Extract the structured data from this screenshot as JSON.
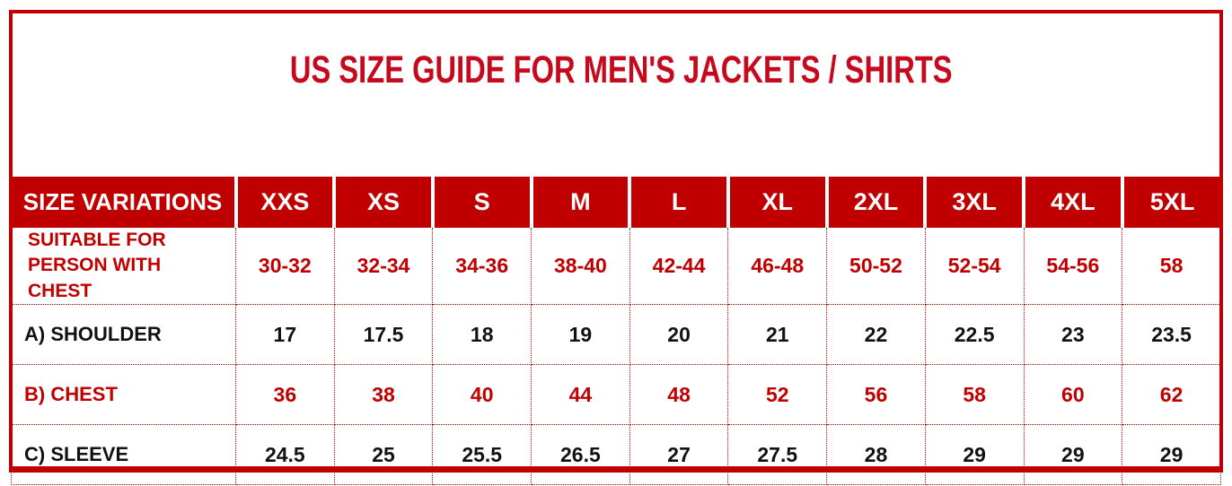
{
  "page": {
    "title": "US SIZE GUIDE FOR MEN'S JACKETS / SHIRTS"
  },
  "colors": {
    "table_red": "#C00000",
    "title_red": "#C7091D",
    "header_text": "#FFFFFF",
    "text_black": "#121212",
    "background": "#FFFFFF"
  },
  "chart_data": {
    "type": "table",
    "title": "US SIZE GUIDE FOR MEN'S JACKETS / SHIRTS",
    "header": [
      "SIZE VARIATIONS",
      "XXS",
      "XS",
      "S",
      "M",
      "L",
      "XL",
      "2XL",
      "3XL",
      "4XL",
      "5XL"
    ],
    "rows": [
      {
        "label": "SUITABLE FOR PERSON WITH CHEST",
        "text_color": "red",
        "values": [
          "30-32",
          "32-34",
          "34-36",
          "38-40",
          "42-44",
          "46-48",
          "50-52",
          "52-54",
          "54-56",
          "58"
        ]
      },
      {
        "label": "A) SHOULDER",
        "text_color": "black",
        "values": [
          17,
          17.5,
          18,
          19,
          20,
          21,
          22,
          22.5,
          23,
          23.5
        ]
      },
      {
        "label": "B) CHEST",
        "text_color": "red",
        "values": [
          36,
          38,
          40,
          44,
          48,
          52,
          56,
          58,
          60,
          62
        ]
      },
      {
        "label": "C) SLEEVE",
        "text_color": "black",
        "values": [
          24.5,
          25,
          25.5,
          26.5,
          27,
          27.5,
          28,
          29,
          29,
          29
        ]
      }
    ],
    "layout": {
      "first_column_header": "SIZE VARIATIONS",
      "grid": "dotted-red",
      "header_style": "red-background-white-text"
    }
  }
}
